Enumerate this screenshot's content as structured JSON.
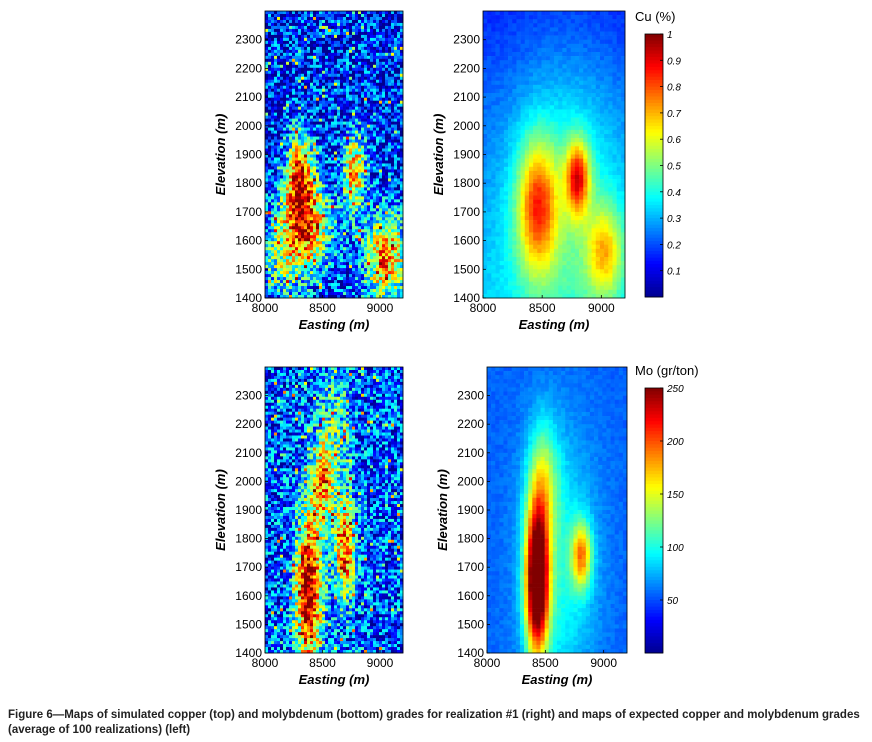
{
  "caption": "Figure 6—Maps of simulated copper (top) and molybdenum (bottom) grades for realization #1 (right) and maps of expected copper and molybdenum grades (average of 100 realizations) (left)",
  "colormap": [
    "#00008f",
    "#0000ff",
    "#0080ff",
    "#00ffff",
    "#80ff80",
    "#ffff00",
    "#ff8000",
    "#ff0000",
    "#800000"
  ],
  "chart_data": [
    {
      "type": "heatmap",
      "panel": "top-left",
      "xlabel": "Easting (m)",
      "ylabel": "Elevation (m)",
      "xlim": [
        8000,
        9200
      ],
      "ylim": [
        1400,
        2400
      ],
      "xticks": [
        "8000",
        "8500",
        "9000"
      ],
      "yticks": [
        "1400",
        "1500",
        "1600",
        "1700",
        "1800",
        "1900",
        "2000",
        "2100",
        "2200",
        "2300"
      ],
      "field": "Cu",
      "style": "noisy",
      "colorbar": false,
      "clim": [
        0,
        1
      ],
      "hotspots": [
        {
          "x": 8300,
          "y": 1820,
          "sx": 80,
          "sy": 110,
          "v": 0.65
        },
        {
          "x": 8380,
          "y": 1650,
          "sx": 150,
          "sy": 110,
          "v": 0.55
        },
        {
          "x": 8780,
          "y": 1840,
          "sx": 70,
          "sy": 100,
          "v": 0.55
        },
        {
          "x": 9050,
          "y": 1540,
          "sx": 130,
          "sy": 110,
          "v": 0.6
        },
        {
          "x": 8150,
          "y": 1550,
          "sx": 140,
          "sy": 120,
          "v": 0.3
        }
      ]
    },
    {
      "type": "heatmap",
      "panel": "top-right",
      "xlabel": "Easting (m)",
      "ylabel": "Elevation (m)",
      "xlim": [
        8000,
        9200
      ],
      "ylim": [
        1400,
        2400
      ],
      "xticks": [
        "8000",
        "8500",
        "9000"
      ],
      "yticks": [
        "1400",
        "1500",
        "1600",
        "1700",
        "1800",
        "1900",
        "2000",
        "2100",
        "2200",
        "2300"
      ],
      "field": "Cu",
      "style": "smooth",
      "colorbar": true,
      "colorbar_title": "Cu (%)",
      "colorbar_ticks": [
        "0.1",
        "0.2",
        "0.3",
        "0.4",
        "0.5",
        "0.6",
        "0.7",
        "0.8",
        "0.9",
        "1"
      ],
      "clim": [
        0,
        1
      ],
      "hotspots": [
        {
          "x": 8460,
          "y": 1720,
          "sx": 120,
          "sy": 160,
          "v": 0.45
        },
        {
          "x": 8800,
          "y": 1820,
          "sx": 70,
          "sy": 90,
          "v": 0.5
        },
        {
          "x": 9030,
          "y": 1560,
          "sx": 110,
          "sy": 110,
          "v": 0.32
        },
        {
          "x": 8700,
          "y": 1750,
          "sx": 350,
          "sy": 350,
          "v": 0.18
        }
      ]
    },
    {
      "type": "heatmap",
      "panel": "bottom-left",
      "xlabel": "Easting (m)",
      "ylabel": "Elevation (m)",
      "xlim": [
        8000,
        9200
      ],
      "ylim": [
        1400,
        2400
      ],
      "xticks": [
        "8000",
        "8500",
        "9000"
      ],
      "yticks": [
        "1400",
        "1500",
        "1600",
        "1700",
        "1800",
        "1900",
        "2000",
        "2100",
        "2200",
        "2300"
      ],
      "field": "Mo",
      "style": "noisy",
      "colorbar": false,
      "clim": [
        0,
        250
      ],
      "hotspots": [
        {
          "x": 8380,
          "y": 1620,
          "sx": 80,
          "sy": 200,
          "v": 200
        },
        {
          "x": 8700,
          "y": 1760,
          "sx": 60,
          "sy": 120,
          "v": 150
        },
        {
          "x": 8500,
          "y": 2000,
          "sx": 60,
          "sy": 100,
          "v": 110
        },
        {
          "x": 8600,
          "y": 2150,
          "sx": 100,
          "sy": 200,
          "v": 60
        }
      ]
    },
    {
      "type": "heatmap",
      "panel": "bottom-right",
      "xlabel": "Easting (m)",
      "ylabel": "Elevation (m)",
      "xlim": [
        8000,
        9200
      ],
      "ylim": [
        1400,
        2400
      ],
      "xticks": [
        "8000",
        "8500",
        "9000"
      ],
      "yticks": [
        "1400",
        "1500",
        "1600",
        "1700",
        "1800",
        "1900",
        "2000",
        "2100",
        "2200",
        "2300"
      ],
      "field": "Mo",
      "style": "smooth",
      "colorbar": true,
      "colorbar_title": "Mo (gr/ton)",
      "colorbar_ticks": [
        "50",
        "100",
        "150",
        "200",
        "250"
      ],
      "clim": [
        0,
        250
      ],
      "hotspots": [
        {
          "x": 8430,
          "y": 1650,
          "sx": 70,
          "sy": 180,
          "v": 240
        },
        {
          "x": 8480,
          "y": 2000,
          "sx": 90,
          "sy": 150,
          "v": 70
        },
        {
          "x": 8810,
          "y": 1740,
          "sx": 60,
          "sy": 80,
          "v": 110
        },
        {
          "x": 8620,
          "y": 1700,
          "sx": 220,
          "sy": 320,
          "v": 45
        }
      ]
    }
  ]
}
